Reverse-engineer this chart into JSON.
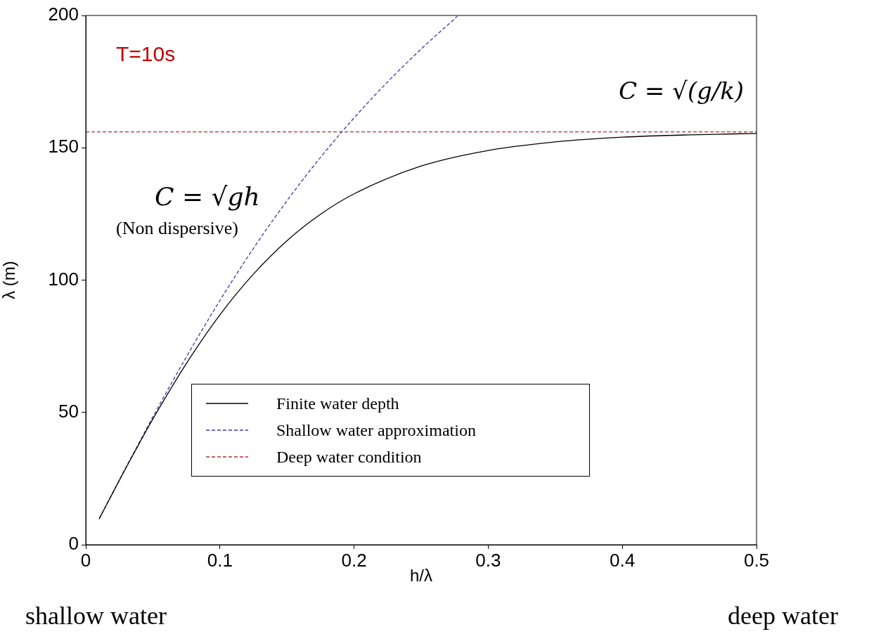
{
  "chart_data": {
    "type": "line",
    "xlabel": "h/λ",
    "ylabel": "λ (m)",
    "xlim": [
      0,
      0.5
    ],
    "xticks": [
      0,
      0.1,
      0.2,
      0.3,
      0.4,
      0.5
    ],
    "ylim": [
      0,
      200
    ],
    "yticks": [
      0,
      50,
      100,
      150,
      200
    ],
    "grid": false,
    "legend": "bottom",
    "marker": "none",
    "series": [
      {
        "name": "Finite water depth",
        "color": "#000000",
        "line_style": "solid",
        "x": [
          0.01,
          0.02,
          0.03,
          0.04,
          0.05,
          0.075,
          0.1,
          0.125,
          0.15,
          0.175,
          0.2,
          0.25,
          0.3,
          0.35,
          0.4,
          0.45,
          0.5
        ],
        "values": [
          9.8,
          19.5,
          29.1,
          38.4,
          47.5,
          68.5,
          86.9,
          102.3,
          114.9,
          124.9,
          132.6,
          143.1,
          149.0,
          152.2,
          154.0,
          154.9,
          155.4
        ]
      },
      {
        "name": "Shallow water approximation",
        "color": "#3a3aa8",
        "line_style": "dashed",
        "x": [
          0.01,
          0.02,
          0.03,
          0.04,
          0.05,
          0.075,
          0.1,
          0.125,
          0.15,
          0.175,
          0.2,
          0.225,
          0.25,
          0.277
        ],
        "values": [
          9.8,
          19.6,
          29.3,
          38.8,
          48.3,
          71.0,
          92.3,
          112.0,
          130.0,
          146.4,
          161.3,
          174.9,
          187.3,
          199.7
        ]
      },
      {
        "name": "Deep water condition",
        "color": "#b03030",
        "line_style": "dashed",
        "x": [
          0,
          0.5
        ],
        "values": [
          156,
          156
        ]
      }
    ],
    "annotations": [
      "T=10s",
      "C = √gh",
      "(Non dispersive)",
      "C = √(g/k)",
      "shallow water",
      "deep water"
    ]
  }
}
